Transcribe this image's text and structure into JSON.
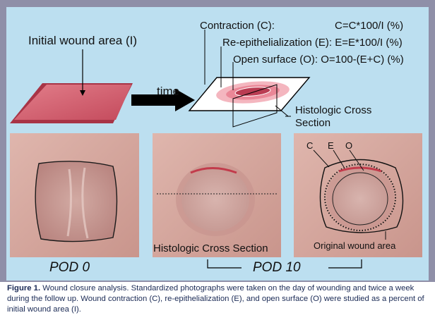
{
  "diagram": {
    "initial_wound_label": "Initial wound area (I)",
    "time_label": "time",
    "contraction_label": "Contraction (C):",
    "contraction_formula": "C=C*100/I (%)",
    "reepi_label": "Re-epithelialization (E): E=E*100/I (%)",
    "open_label": "Open surface (O): O=100-(E+C) (%)",
    "histo_label_line1": "Histologic Cross",
    "histo_label_line2": "Section"
  },
  "photos": {
    "histo_section_label": "Histologic Cross Section",
    "c_label": "C",
    "e_label": "E",
    "o_label": "O",
    "original_wound_label": "Original wound area",
    "pod0_label": "POD 0",
    "pod10_label": "POD 10"
  },
  "caption": {
    "figure_label": "Figure 1.",
    "text": "Wound closure analysis. Standardized photographs were taken on the day of wounding and twice a week during the follow up. Wound contraction (C), re-epithelialization (E), and open surface (O) were studied as a percent of initial wound area (I)."
  },
  "colors": {
    "panel_background": "#bcdff0",
    "frame": "#8f8fa8",
    "wound_pink": "#d85f70",
    "skin_tone": "#d6a79e"
  }
}
